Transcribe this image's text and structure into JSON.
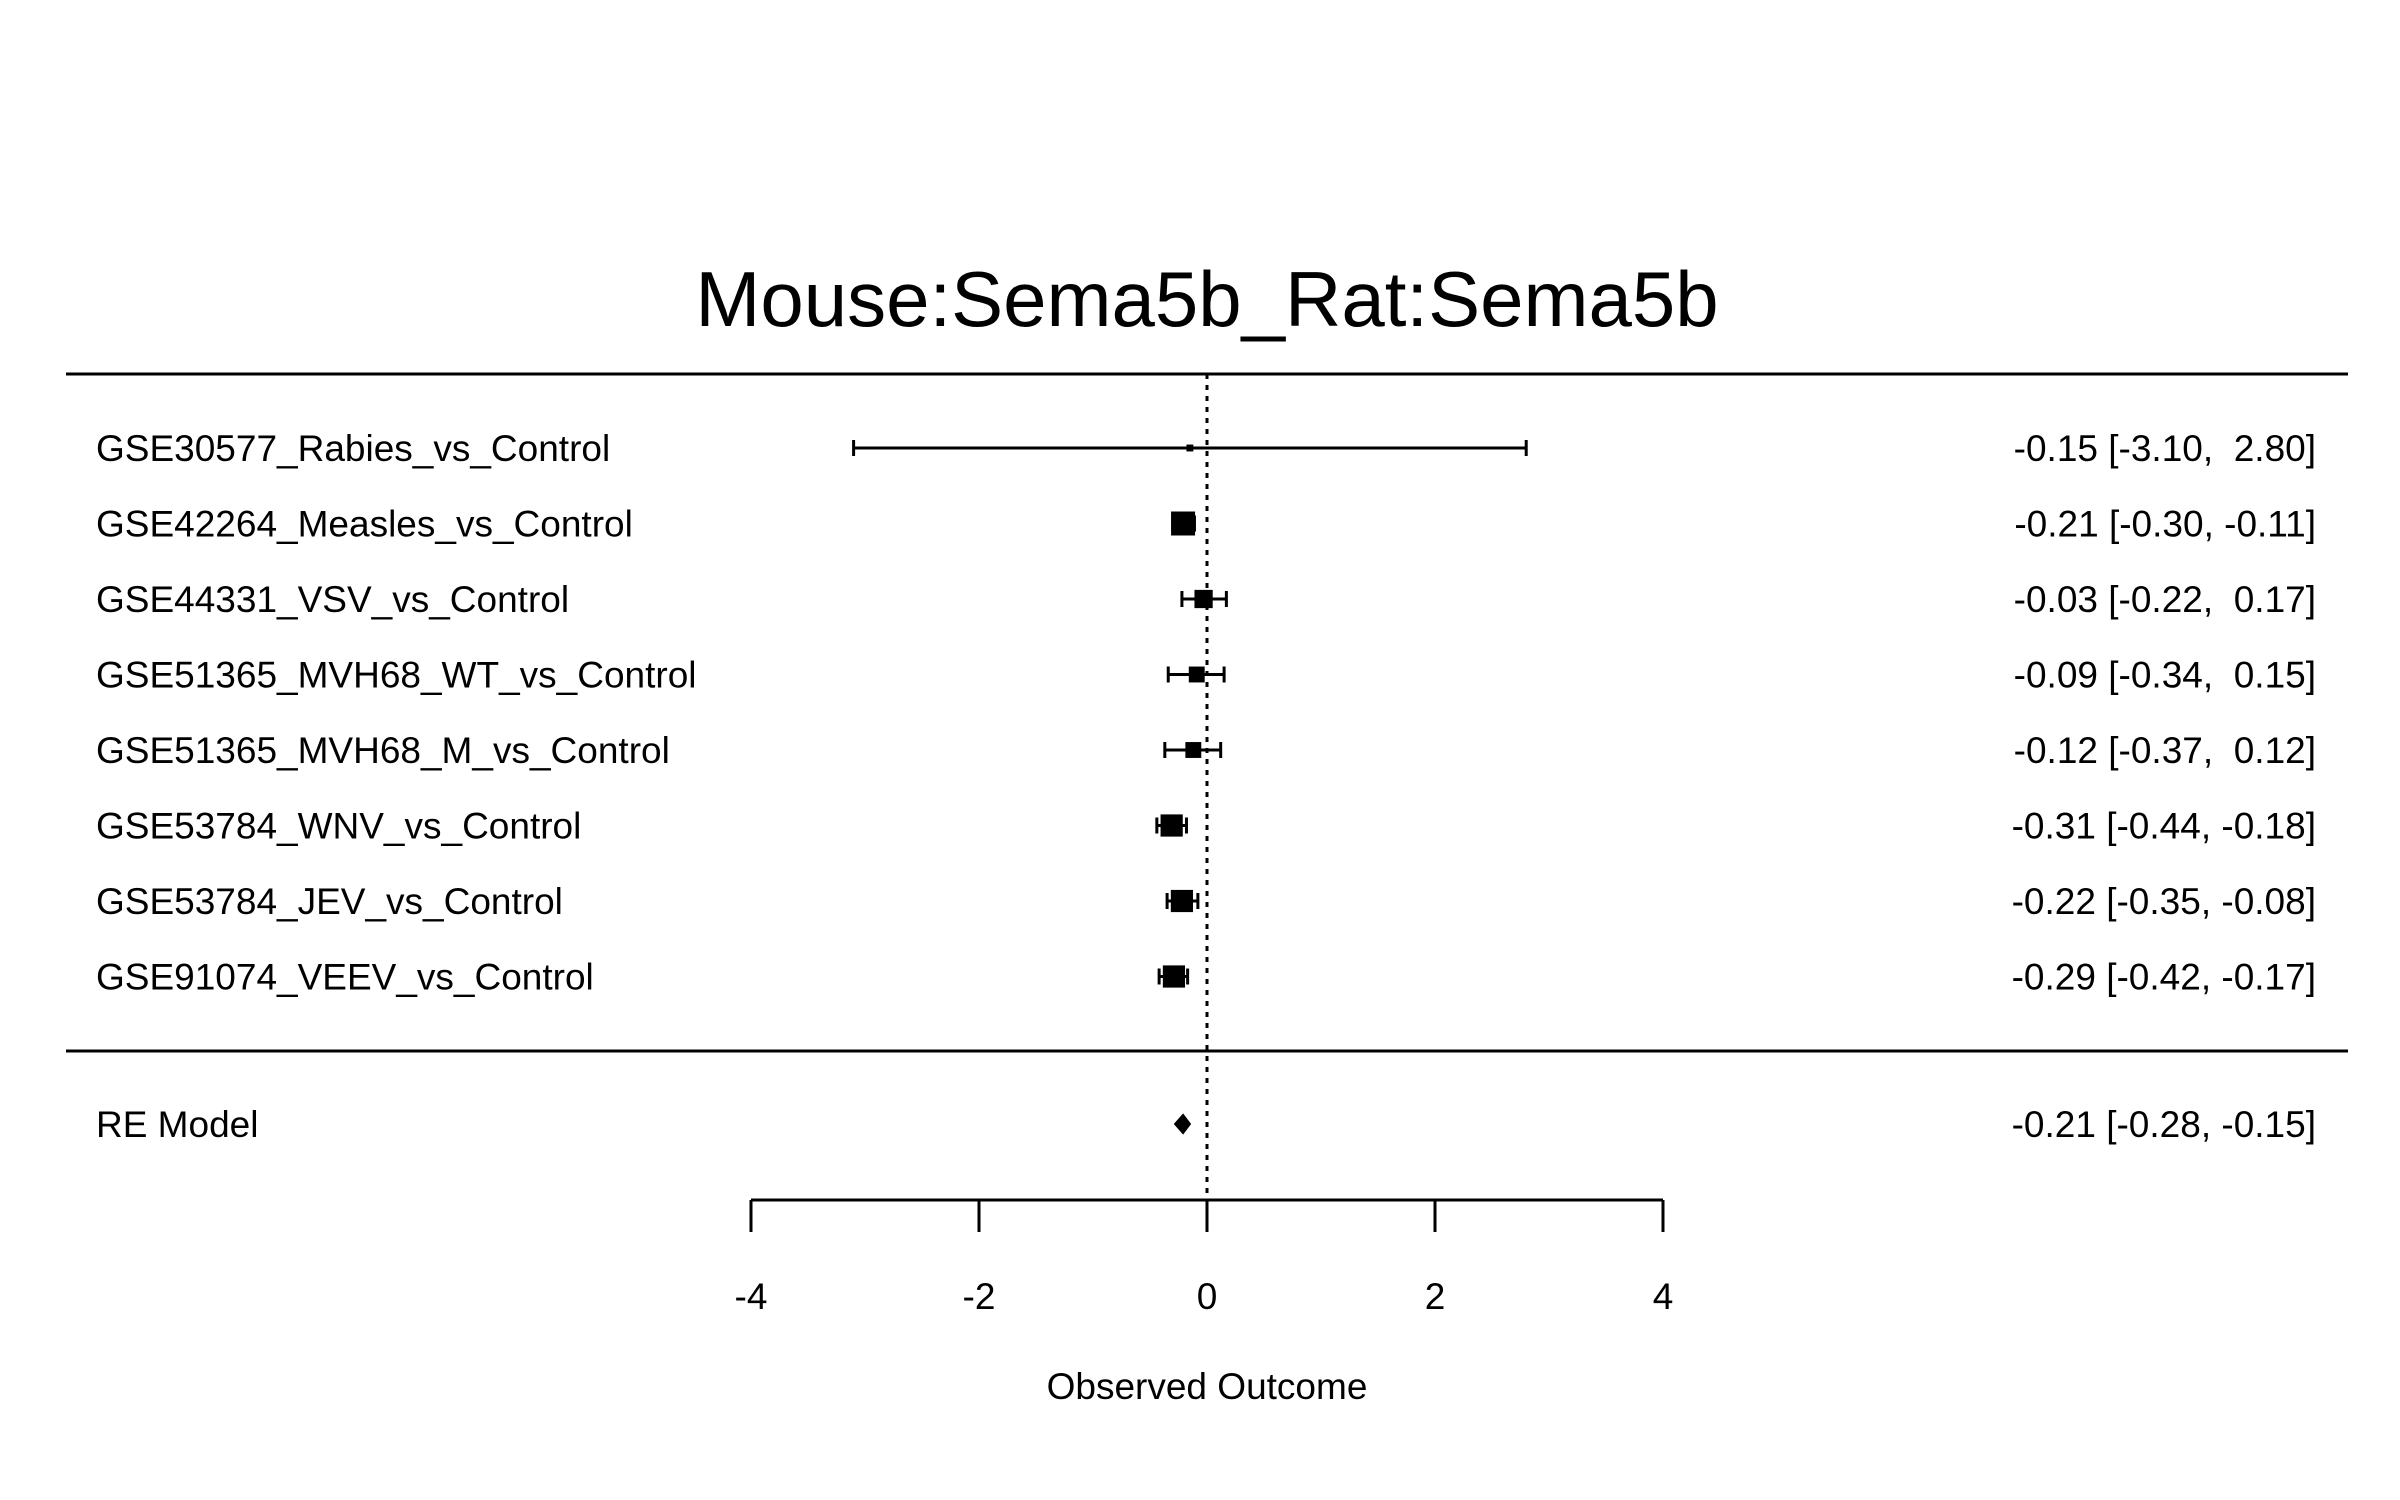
{
  "chart_data": {
    "type": "forest",
    "title": "Mouse:Sema5b_Rat:Sema5b",
    "xlabel": "Observed Outcome",
    "xlim": [
      -4,
      4
    ],
    "xticks": [
      "-4",
      "-2",
      "0",
      "2",
      "4"
    ],
    "reference_line": 0,
    "studies": [
      {
        "label": "GSE30577_Rabies_vs_Control",
        "estimate": -0.15,
        "lower": -3.1,
        "upper": 2.8,
        "ci_text": "-0.15 [-3.10,  2.80]",
        "weight": 0.05
      },
      {
        "label": "GSE42264_Measles_vs_Control",
        "estimate": -0.21,
        "lower": -0.3,
        "upper": -0.11,
        "ci_text": "-0.21 [-0.30, -0.11]",
        "weight": 1.0
      },
      {
        "label": "GSE44331_VSV_vs_Control",
        "estimate": -0.03,
        "lower": -0.22,
        "upper": 0.17,
        "ci_text": "-0.03 [-0.22,  0.17]",
        "weight": 0.68
      },
      {
        "label": "GSE51365_MVH68_WT_vs_Control",
        "estimate": -0.09,
        "lower": -0.34,
        "upper": 0.15,
        "ci_text": "-0.09 [-0.34,  0.15]",
        "weight": 0.55
      },
      {
        "label": "GSE51365_MVH68_M_vs_Control",
        "estimate": -0.12,
        "lower": -0.37,
        "upper": 0.12,
        "ci_text": "-0.12 [-0.37,  0.12]",
        "weight": 0.55
      },
      {
        "label": "GSE53784_WNV_vs_Control",
        "estimate": -0.31,
        "lower": -0.44,
        "upper": -0.18,
        "ci_text": "-0.31 [-0.44, -0.18]",
        "weight": 0.9
      },
      {
        "label": "GSE53784_JEV_vs_Control",
        "estimate": -0.22,
        "lower": -0.35,
        "upper": -0.08,
        "ci_text": "-0.22 [-0.35, -0.08]",
        "weight": 0.9
      },
      {
        "label": "GSE91074_VEEV_vs_Control",
        "estimate": -0.29,
        "lower": -0.42,
        "upper": -0.17,
        "ci_text": "-0.29 [-0.42, -0.17]",
        "weight": 0.9
      }
    ],
    "summary": {
      "label": "RE Model",
      "estimate": -0.21,
      "lower": -0.28,
      "upper": -0.15,
      "ci_text": "-0.21 [-0.28, -0.15]"
    }
  }
}
